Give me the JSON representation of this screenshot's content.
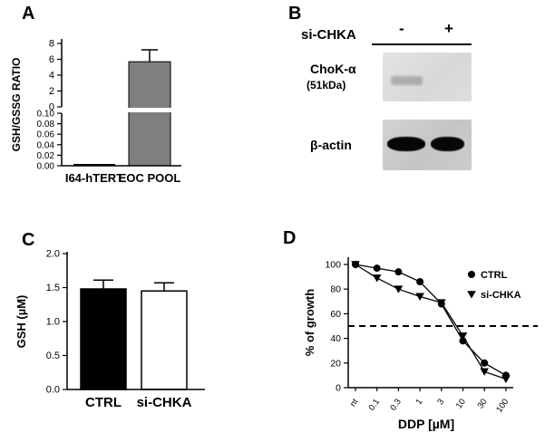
{
  "figure": {
    "background": "#ffffff"
  },
  "chart_data": [
    {
      "panel": "A",
      "type": "bar",
      "title": "",
      "ylabel": "GSH/GSSG RATIO",
      "categories": [
        "I64-hTERT",
        "EOC POOL"
      ],
      "values": [
        0.002,
        5.7
      ],
      "errors": [
        0.0,
        1.5
      ],
      "axis_break": true,
      "upper_axis": {
        "range": [
          0,
          8
        ],
        "ticks": [
          "0",
          "2",
          "4",
          "6",
          "8"
        ]
      },
      "lower_axis": {
        "range": [
          0.0,
          0.1
        ],
        "ticks": [
          "0.00",
          "0.02",
          "0.04",
          "0.06",
          "0.08",
          "0.10"
        ]
      },
      "bar_color": "#7f7f7f",
      "grid": false
    },
    {
      "panel": "C",
      "type": "bar",
      "title": "",
      "ylabel": "GSH (µM)",
      "categories": [
        "CTRL",
        "si-CHKA"
      ],
      "values": [
        1.48,
        1.45
      ],
      "errors": [
        0.13,
        0.12
      ],
      "ylim": [
        0,
        2.0
      ],
      "yticks": [
        "0.0",
        "0.5",
        "1.0",
        "1.5",
        "2.0"
      ],
      "bar_colors": [
        "#000000",
        "#ffffff"
      ],
      "grid": false
    },
    {
      "panel": "D",
      "type": "line",
      "title": "",
      "ylabel": "% of growth",
      "xlabel": "DDP [µM]",
      "categories": [
        "nt",
        "0.1",
        "0.3",
        "1",
        "3",
        "10",
        "30",
        "100"
      ],
      "ylim": [
        0,
        100
      ],
      "yticks": [
        "0",
        "20",
        "40",
        "60",
        "80",
        "100"
      ],
      "reference_line": 50,
      "legend_position": "upper right",
      "series": [
        {
          "name": "CTRL",
          "marker": "circle",
          "values": [
            100,
            97,
            94,
            86,
            68,
            38,
            20,
            10
          ]
        },
        {
          "name": "si-CHKA",
          "marker": "triangle-down",
          "values": [
            100,
            89,
            80,
            74,
            69,
            42,
            13,
            7
          ]
        }
      ],
      "grid": false
    }
  ],
  "panel_b": {
    "label": "B",
    "header": "si-CHKA",
    "lanes": [
      "-",
      "+"
    ],
    "blot1_label": "ChoK-α",
    "blot1_sublabel": "(51kDa)",
    "blot1_bands": [
      true,
      false
    ],
    "blot2_label": "β-actin",
    "blot2_bands": [
      true,
      true
    ]
  }
}
